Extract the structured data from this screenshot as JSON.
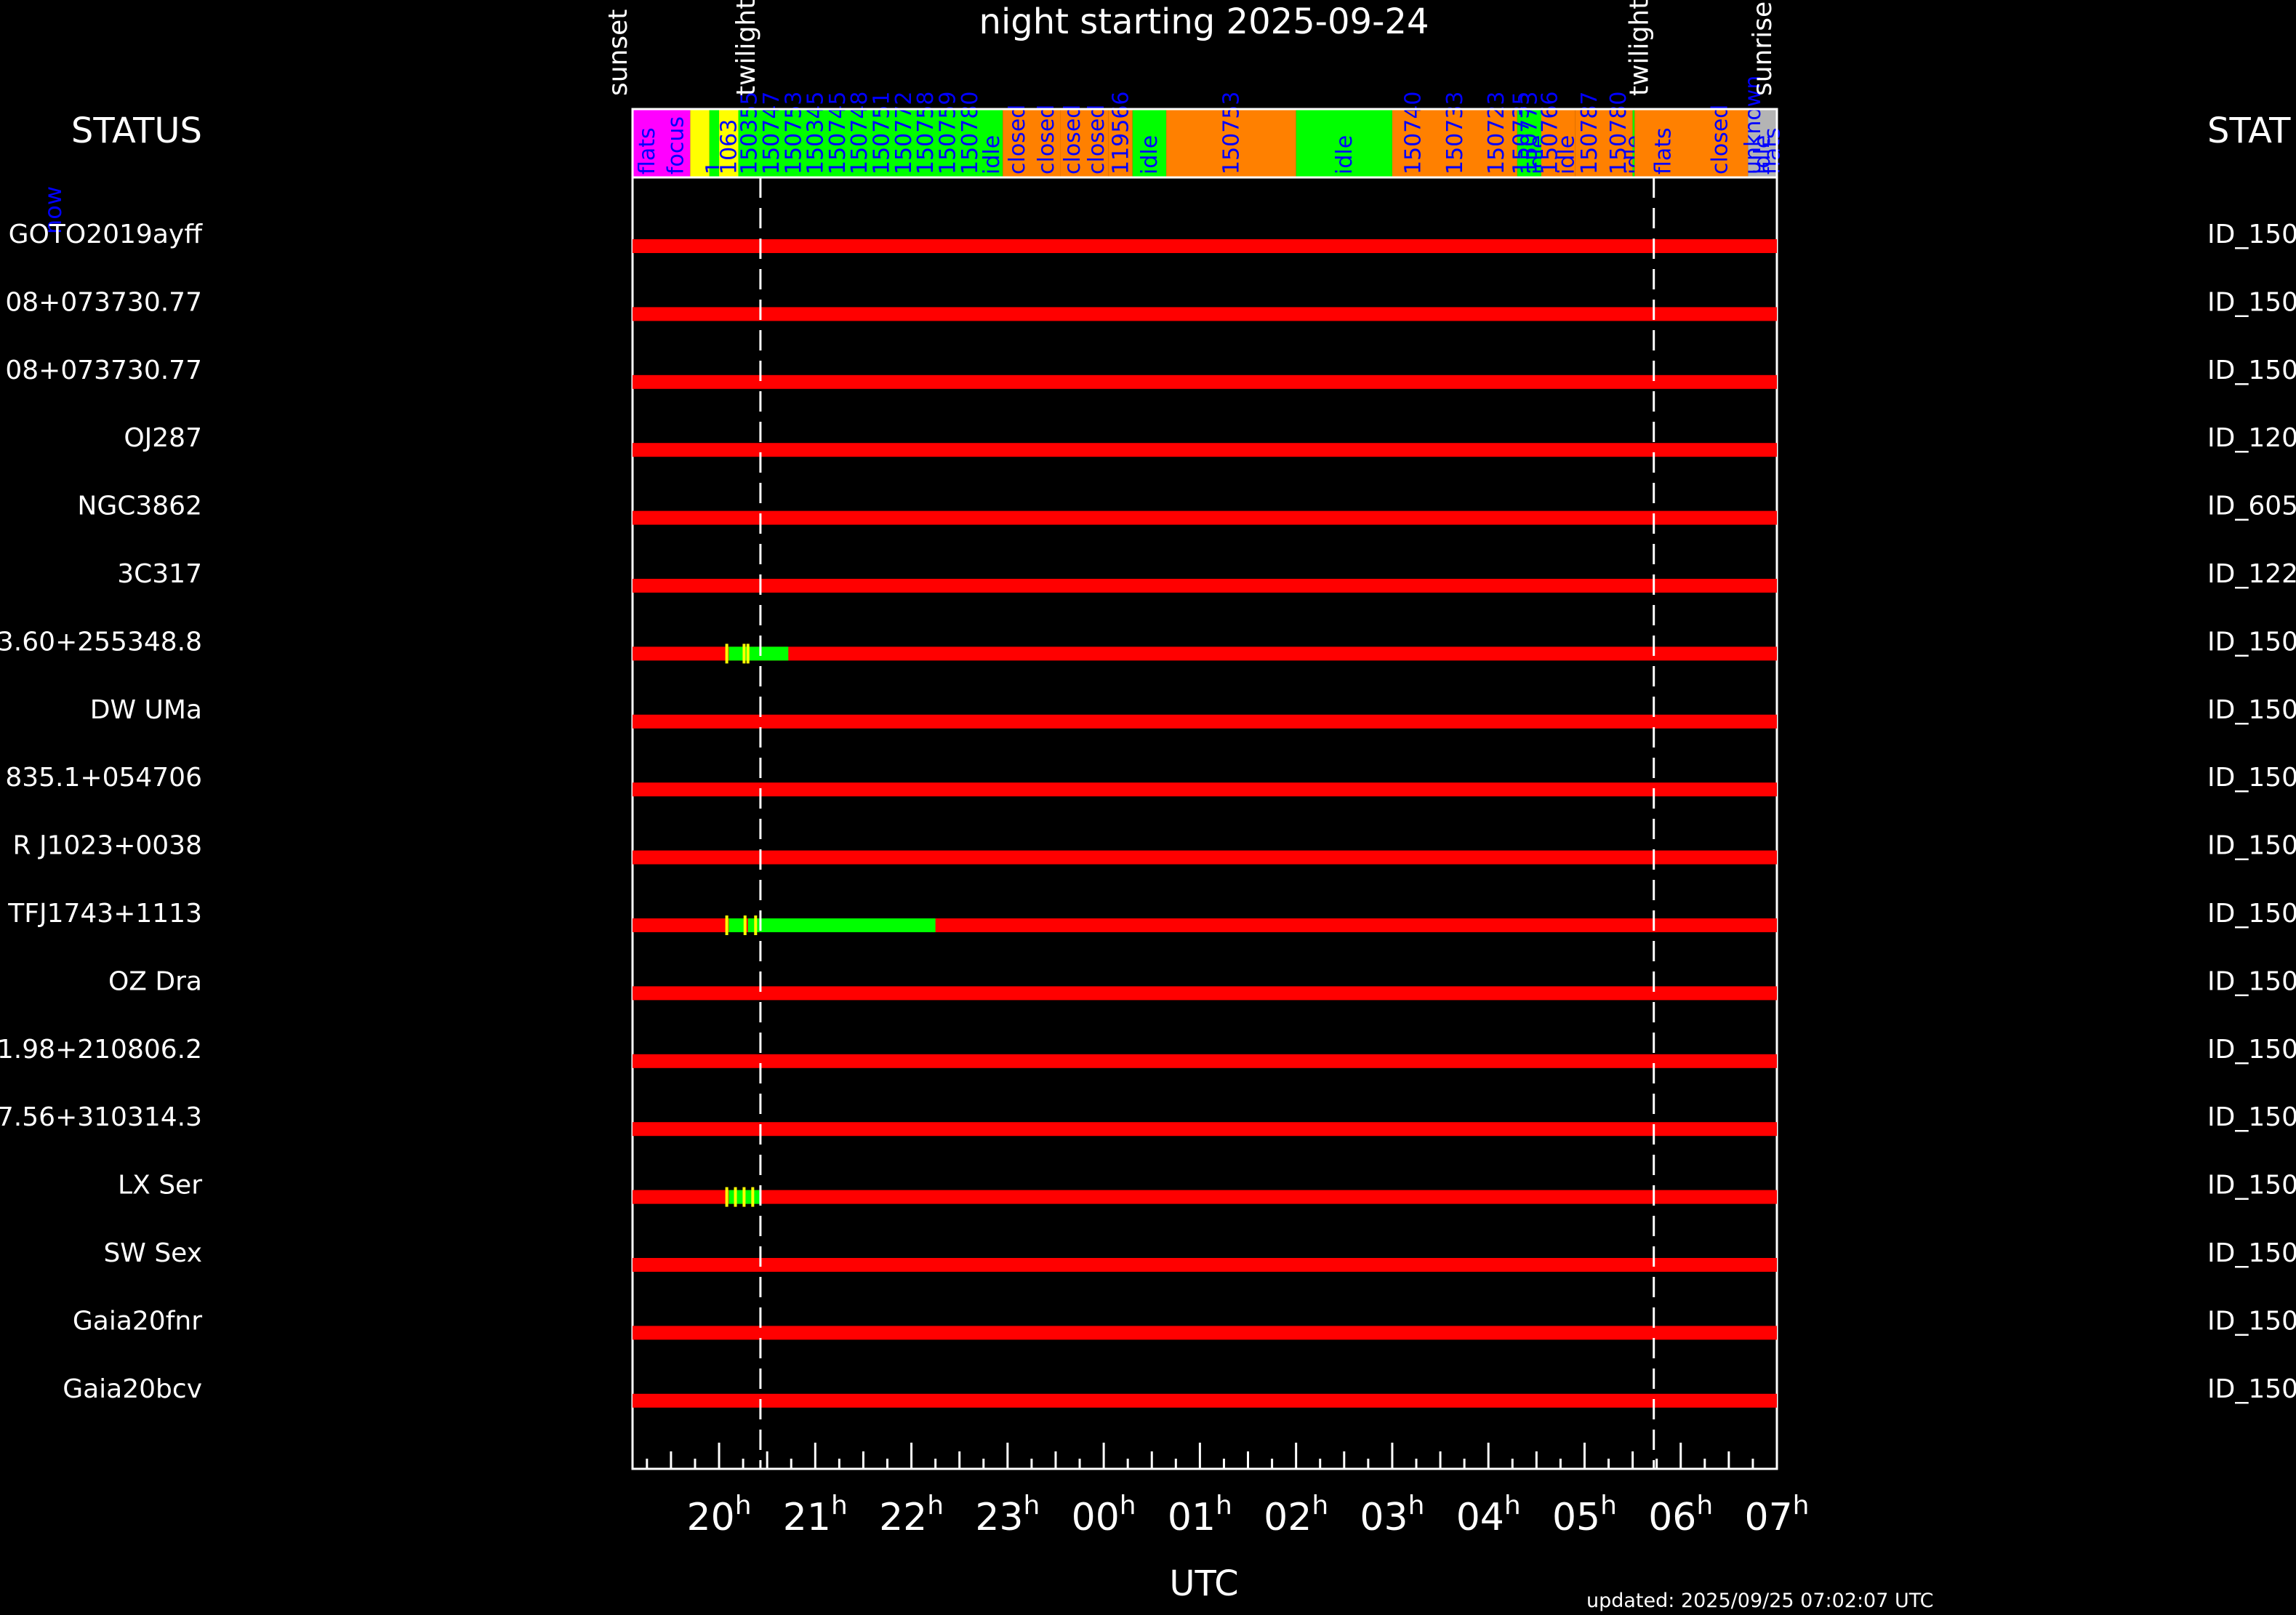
{
  "title": "night starting 2025-09-24",
  "status_label_left": "STATUS",
  "status_label_right": "STAT",
  "now_label": "now",
  "updated": "updated: 2025/09/25 07:02:07 UTC",
  "colors": {
    "background": "#000000",
    "axis": "#ffffff",
    "not_observed": "#ff0000",
    "observed": "#00ff00",
    "marker": "#ffff00",
    "flats": "#ff00ff",
    "focus": "#ffff00",
    "idle": "#00ff00",
    "closed": "#ff8000",
    "unknown": "#b4b4b4",
    "segment_label": "#0000ff"
  },
  "chart_data": {
    "type": "timeline",
    "xlabel": "UTC",
    "xlim": [
      19.1,
      7.0
    ],
    "x_ticks": [
      "20",
      "21",
      "22",
      "23",
      "00",
      "01",
      "02",
      "03",
      "04",
      "05",
      "06",
      "07"
    ],
    "tick_unit": "h",
    "events": [
      {
        "label": "sunset",
        "time": 19.1,
        "line": false
      },
      {
        "label": "twilight",
        "time": 20.43,
        "line": true
      },
      {
        "label": "twilight",
        "time": 5.72,
        "line": true
      },
      {
        "label": "sunrise",
        "time": 7.0,
        "line": false
      }
    ],
    "status_segments": [
      {
        "start": 19.1,
        "end": 19.7,
        "status": "flats",
        "labels": [
          "flats",
          "focus"
        ]
      },
      {
        "start": 19.7,
        "end": 19.9,
        "status": "focus",
        "labels": []
      },
      {
        "start": 19.9,
        "end": 20.0,
        "status": "idle",
        "labels": [
          "1"
        ]
      },
      {
        "start": 20.0,
        "end": 20.2,
        "status": "focus",
        "labels": [
          "1063"
        ]
      },
      {
        "start": 20.2,
        "end": 22.95,
        "status": "idle",
        "labels": [
          "150355",
          "150747",
          "150753",
          "150345",
          "150745",
          "150748",
          "150751",
          "150772",
          "150758",
          "150759",
          "150780",
          "idle"
        ]
      },
      {
        "start": 22.95,
        "end": 23.55,
        "status": "closed",
        "labels": [
          "closed",
          "closed"
        ]
      },
      {
        "start": 23.55,
        "end": 24.05,
        "status": "closed",
        "labels": [
          "closed",
          "closed"
        ]
      },
      {
        "start": 24.05,
        "end": 24.3,
        "status": "closed",
        "labels": [
          "119566"
        ]
      },
      {
        "start": 24.3,
        "end": 24.65,
        "status": "idle",
        "labels": [
          "idle"
        ]
      },
      {
        "start": 24.65,
        "end": 26.0,
        "status": "closed",
        "labels": [
          "150753"
        ]
      },
      {
        "start": 26.0,
        "end": 27.0,
        "status": "idle",
        "labels": [
          "idle"
        ]
      },
      {
        "start": 27.0,
        "end": 28.3,
        "status": "closed",
        "labels": [
          "150740",
          "150733",
          "150723"
        ]
      },
      {
        "start": 28.3,
        "end": 28.55,
        "status": "idle",
        "labels": [
          "150735",
          "150773",
          "idle"
        ]
      },
      {
        "start": 28.55,
        "end": 28.9,
        "status": "closed",
        "labels": [
          "150766",
          "idle"
        ]
      },
      {
        "start": 28.9,
        "end": 29.5,
        "status": "closed",
        "labels": [
          "150787",
          "150780"
        ]
      },
      {
        "start": 29.5,
        "end": 29.52,
        "status": "idle",
        "labels": [
          "idle"
        ]
      },
      {
        "start": 29.52,
        "end": 30.7,
        "status": "closed",
        "labels": [
          "flats",
          "closed"
        ]
      },
      {
        "start": 30.7,
        "end": 31.0,
        "status": "unknown",
        "labels": [
          "unknown",
          "idle",
          "flats"
        ]
      }
    ],
    "targets": [
      {
        "name": "GOTO2019ayff",
        "id": "ID_150",
        "observations": []
      },
      {
        "name": "08+073730.77",
        "id": "ID_150",
        "observations": []
      },
      {
        "name": "08+073730.77",
        "id": "ID_150",
        "observations": []
      },
      {
        "name": "OJ287",
        "id": "ID_120",
        "observations": []
      },
      {
        "name": "NGC3862",
        "id": "ID_605",
        "observations": []
      },
      {
        "name": "3C317",
        "id": "ID_122",
        "observations": []
      },
      {
        "name": "3.60+255348.8",
        "id": "ID_150",
        "observations": [
          [
            20.1,
            20.3
          ],
          [
            20.3,
            20.72
          ]
        ],
        "markers": [
          20.08,
          20.26,
          20.3
        ]
      },
      {
        "name": "DW UMa",
        "id": "ID_150",
        "observations": []
      },
      {
        "name": "835.1+054706",
        "id": "ID_150",
        "observations": []
      },
      {
        "name": "R J1023+0038",
        "id": "ID_150",
        "observations": []
      },
      {
        "name": "TFJ1743+1113",
        "id": "ID_150",
        "observations": [
          [
            20.1,
            20.28
          ],
          [
            20.3,
            22.25
          ]
        ],
        "markers": [
          20.08,
          20.27,
          20.38
        ]
      },
      {
        "name": "OZ Dra",
        "id": "ID_150",
        "observations": []
      },
      {
        "name": "1.98+210806.2",
        "id": "ID_150",
        "observations": []
      },
      {
        "name": "7.56+310314.3",
        "id": "ID_150",
        "observations": []
      },
      {
        "name": "LX Ser",
        "id": "ID_150",
        "observations": [
          [
            20.1,
            20.43
          ]
        ],
        "markers": [
          20.08,
          20.17,
          20.26,
          20.35
        ]
      },
      {
        "name": "SW Sex",
        "id": "ID_150",
        "observations": []
      },
      {
        "name": "Gaia20fnr",
        "id": "ID_150",
        "observations": []
      },
      {
        "name": "Gaia20bcv",
        "id": "ID_150",
        "observations": []
      }
    ]
  }
}
